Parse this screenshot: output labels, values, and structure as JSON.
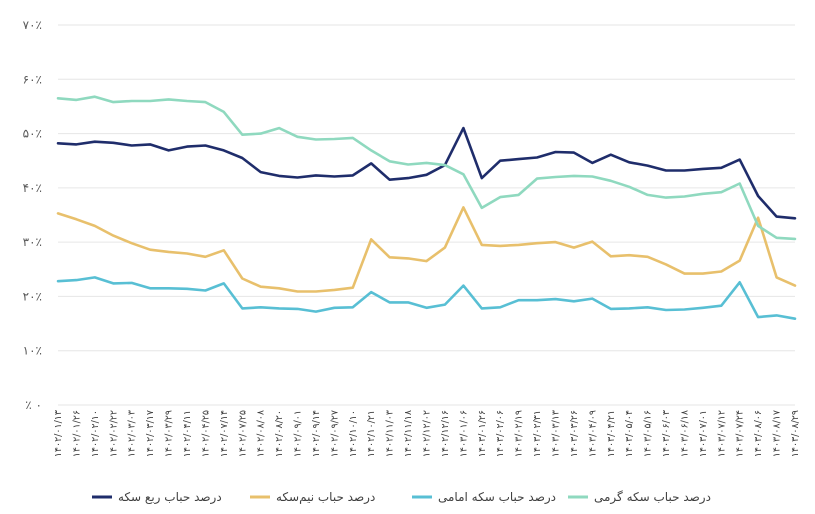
{
  "chart_data": {
    "type": "line",
    "ylim": [
      0,
      70
    ],
    "yticks": [
      0,
      10,
      20,
      30,
      40,
      50,
      60,
      70
    ],
    "ytick_labels": [
      "٪ ۰",
      "۱۰٪",
      "۲۰٪",
      "۳۰٪",
      "۴۰٪",
      "۵۰٪",
      "۶۰٪",
      "۷۰٪"
    ],
    "x": [
      "۱۴۰۲/۰۱/۱۳",
      "۱۴۰۲/۰۱/۲۶",
      "۱۴۰۲/۰۲/۱۰",
      "۱۴۰۲/۰۲/۲۲",
      "۱۴۰۲/۰۳/۰۳",
      "۱۴۰۲/۰۳/۱۷",
      "۱۴۰۲/۰۳/۲۹",
      "۱۴۰۲/۰۴/۱۱",
      "۱۴۰۲/۰۴/۲۵",
      "۱۴۰۲/۰۷/۱۴",
      "۱۴۰۲/۰۷/۲۵",
      "۱۴۰۲/۰۸/۰۸",
      "۱۴۰۲/۰۸/۲۰",
      "۱۴۰۲/۰۹/۰۱",
      "۱۴۰۲/۰۹/۱۴",
      "۱۴۰۲/۰۹/۲۷",
      "۱۴۰۲/۱۰/۱۰",
      "۱۴۰۲/۱۰/۲۱",
      "۱۴۰۲/۱۱/۰۳",
      "۱۴۰۲/۱۱/۱۸",
      "۱۴۰۲/۱۲/۰۲",
      "۱۴۰۲/۱۲/۱۶",
      "۱۴۰۳/۰۱/۰۶",
      "۱۴۰۳/۰۱/۲۶",
      "۱۴۰۳/۰۲/۰۶",
      "۱۴۰۳/۰۲/۱۹",
      "۱۴۰۳/۰۲/۳۱",
      "۱۴۰۳/۰۳/۱۳",
      "۱۴۰۳/۰۳/۲۶",
      "۱۴۰۳/۰۴/۰۹",
      "۱۴۰۳/۰۴/۲۱",
      "۱۴۰۳/۰۵/۰۴",
      "۱۴۰۳/۰۵/۱۶",
      "۱۴۰۳/۰۶/۰۳",
      "۱۴۰۳/۰۶/۱۸",
      "۱۴۰۳/۰۷/۰۱",
      "۱۴۰۳/۰۷/۱۲",
      "۱۴۰۳/۰۷/۲۴",
      "۱۴۰۳/۰۸/۰۶",
      "۱۴۰۳/۰۸/۱۷",
      "۱۴۰۳/۰۸/۲۹"
    ],
    "series": [
      {
        "name": "درصد حباب ربع سکه",
        "color": "#1f2d6b",
        "values": [
          48.2,
          48.0,
          48.5,
          48.3,
          47.8,
          48.0,
          46.9,
          47.6,
          47.8,
          46.9,
          45.5,
          42.9,
          42.2,
          41.9,
          42.3,
          42.1,
          42.3,
          44.5,
          41.5,
          41.8,
          42.4,
          44.2,
          51.0,
          41.8,
          45.0,
          45.3,
          45.6,
          46.6,
          46.5,
          44.6,
          46.1,
          44.7,
          44.1,
          43.2,
          43.2,
          43.5,
          43.7,
          45.2,
          38.5,
          34.7,
          34.4
        ]
      },
      {
        "name": "درصد حباب نیم‌سکه",
        "color": "#e8c06c",
        "values": [
          35.3,
          34.2,
          33.0,
          31.2,
          29.8,
          28.6,
          28.2,
          27.9,
          27.3,
          28.5,
          23.3,
          21.8,
          21.5,
          20.9,
          20.9,
          21.2,
          21.6,
          30.5,
          27.2,
          27.0,
          26.5,
          29.0,
          36.4,
          29.5,
          29.3,
          29.5,
          29.8,
          30.0,
          29.0,
          30.1,
          27.4,
          27.6,
          27.3,
          25.9,
          24.2,
          24.2,
          24.6,
          26.6,
          34.5,
          23.5,
          22.0
        ]
      },
      {
        "name": "درصد حباب سکه امامی",
        "color": "#58bfd4",
        "values": [
          22.8,
          23.0,
          23.5,
          22.4,
          22.5,
          21.5,
          21.5,
          21.4,
          21.1,
          22.4,
          17.8,
          18.0,
          17.8,
          17.7,
          17.2,
          17.9,
          18.0,
          20.8,
          18.9,
          18.9,
          17.9,
          18.5,
          22.0,
          17.8,
          18.0,
          19.3,
          19.3,
          19.5,
          19.1,
          19.6,
          17.7,
          17.8,
          18.0,
          17.5,
          17.6,
          17.9,
          18.3,
          22.6,
          16.2,
          16.5,
          15.9
        ]
      },
      {
        "name": "درصد حباب سکه گرمی",
        "color": "#8fd9bf",
        "values": [
          56.5,
          56.2,
          56.8,
          55.8,
          56.0,
          56.0,
          56.3,
          56.0,
          55.8,
          54.0,
          49.8,
          50.0,
          51.0,
          49.4,
          48.9,
          49.0,
          49.2,
          46.9,
          44.9,
          44.3,
          44.6,
          44.2,
          42.5,
          36.3,
          38.3,
          38.7,
          41.7,
          42.0,
          42.2,
          42.1,
          41.3,
          40.2,
          38.7,
          38.2,
          38.4,
          38.9,
          39.2,
          40.8,
          33.0,
          30.8,
          30.6
        ]
      }
    ],
    "legend_position": "bottom",
    "grid": true
  }
}
